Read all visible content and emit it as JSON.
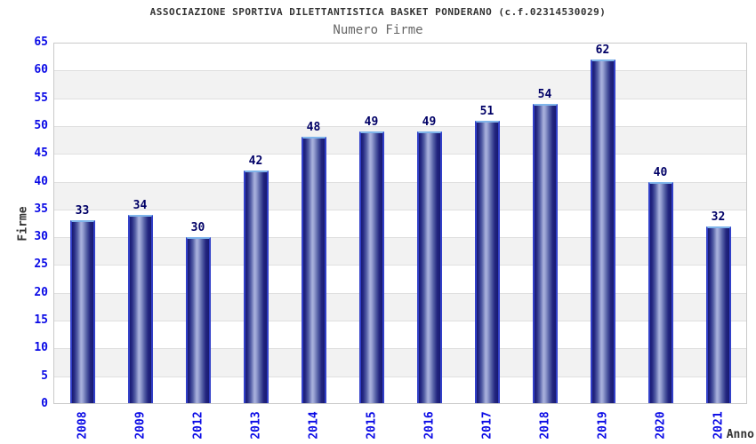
{
  "chart_data": {
    "type": "bar",
    "title": "ASSOCIAZIONE SPORTIVA DILETTANTISTICA BASKET PONDERANO (c.f.02314530029)",
    "subtitle": "Numero Firme",
    "xlabel": "Anno",
    "ylabel": "Firme",
    "categories": [
      "2008",
      "2009",
      "2012",
      "2013",
      "2014",
      "2015",
      "2016",
      "2017",
      "2018",
      "2019",
      "2020",
      "2021"
    ],
    "values": [
      33,
      34,
      30,
      42,
      48,
      49,
      49,
      51,
      54,
      62,
      40,
      32
    ],
    "ylim": [
      0,
      65
    ],
    "ytick_step": 5,
    "grid": "alternating horizontal bands with gridline every 5 units",
    "legend": "none",
    "colors": {
      "axis_tick_label": "#0a0ae6",
      "bar_value_label": "#000066",
      "bar_dark": "#181a72",
      "bar_light": "#aab2dd",
      "bar_border_top": "#7fb4ea",
      "bar_border_side": "#3240c8",
      "band_alt": "#f2f2f2",
      "band_main": "#ffffff",
      "gridline": "#e0e0e0",
      "plot_border": "#c9c9c9",
      "title": "#333333",
      "subtitle": "#666666",
      "axis_title": "#333333",
      "background": "#ffffff"
    }
  }
}
